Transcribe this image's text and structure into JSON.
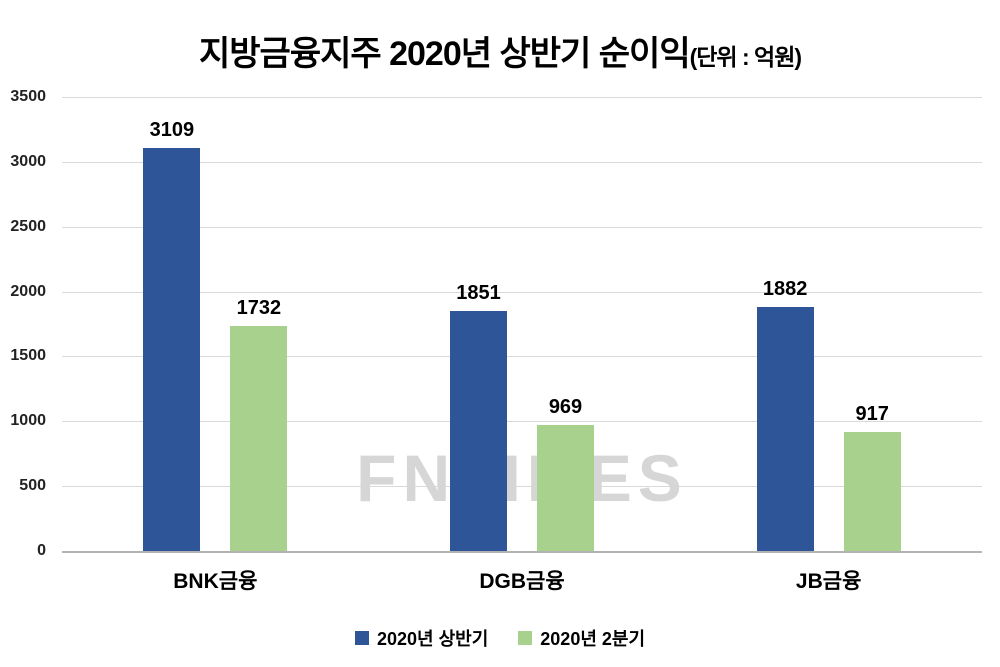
{
  "title": {
    "main": "지방금융지주 2020년 상반기 순이익",
    "unit": "(단위 : 억원)"
  },
  "watermark": "FNTIMES",
  "colors": {
    "series1": "#2E5597",
    "series2": "#A9D18E",
    "gridline": "#D9D9D9",
    "axis": "#B3B3B3",
    "watermark": "#D6D6D6"
  },
  "chart_data": {
    "type": "bar",
    "title": "지방금융지주 2020년 상반기 순이익(단위 : 억원)",
    "categories": [
      "BNK금융",
      "DGB금융",
      "JB금융"
    ],
    "series": [
      {
        "name": "2020년 상반기",
        "color": "#2E5597",
        "values": [
          3109,
          1851,
          1882
        ]
      },
      {
        "name": "2020년 2분기",
        "color": "#A9D18E",
        "values": [
          1732,
          969,
          917
        ]
      }
    ],
    "xlabel": "",
    "ylabel": "",
    "ylim": [
      0,
      3500
    ],
    "yticks": [
      0,
      500,
      1000,
      1500,
      2000,
      2500,
      3000,
      3500
    ],
    "grid": true,
    "legend_position": "bottom"
  }
}
